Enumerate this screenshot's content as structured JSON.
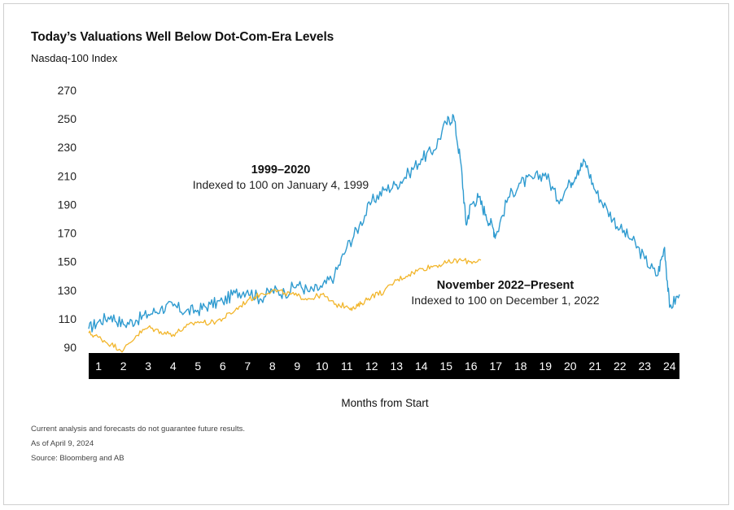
{
  "chart_data": {
    "type": "line",
    "title": "Today’s Valuations Well Below Dot-Com-Era Levels",
    "subtitle": "Nasdaq-100 Index",
    "xlabel": "Months from Start",
    "ylabel": "",
    "yticks": [
      90,
      110,
      130,
      150,
      170,
      190,
      210,
      230,
      250,
      270
    ],
    "ylim": [
      90,
      270
    ],
    "xlim": [
      0.6,
      24.4
    ],
    "months": [
      "1",
      "2",
      "3",
      "4",
      "5",
      "6",
      "7",
      "8",
      "9",
      "10",
      "11",
      "12",
      "13",
      "14",
      "15",
      "16",
      "17",
      "18",
      "19",
      "20",
      "21",
      "22",
      "23",
      "24"
    ],
    "series": [
      {
        "name": "1999–2020",
        "color": "#2f9bd0",
        "x": [
          0.6,
          1,
          1.5,
          2,
          2.5,
          3,
          3.5,
          4,
          4.5,
          5,
          5.5,
          6,
          6.5,
          7,
          7.5,
          8,
          8.5,
          9,
          9.5,
          10,
          10.5,
          11,
          11.5,
          12,
          12.5,
          13,
          13.5,
          14,
          14.5,
          15,
          15.3,
          15.6,
          15.8,
          16,
          16.3,
          16.6,
          16.9,
          17,
          17.5,
          18,
          18.5,
          19,
          19.5,
          20,
          20.3,
          20.6,
          21,
          21.5,
          22,
          22.5,
          23,
          23.5,
          23.8,
          24,
          24.4
        ],
        "y": [
          103,
          108,
          112,
          106,
          109,
          113,
          117,
          119,
          115,
          116,
          120,
          122,
          128,
          130,
          124,
          130,
          128,
          134,
          129,
          132,
          140,
          160,
          175,
          192,
          200,
          204,
          212,
          222,
          228,
          247,
          252,
          218,
          176,
          190,
          195,
          183,
          173,
          168,
          195,
          205,
          208,
          212,
          193,
          205,
          214,
          220,
          200,
          186,
          173,
          165,
          152,
          140,
          160,
          118,
          127
        ]
      },
      {
        "name": "November 2022–Present",
        "color": "#f2b62c",
        "x": [
          0.6,
          1,
          1.5,
          2,
          2.5,
          3,
          3.5,
          4,
          4.5,
          5,
          5.5,
          6,
          6.5,
          7,
          7.5,
          8,
          8.5,
          9,
          9.5,
          10,
          10.5,
          11,
          11.3,
          11.6,
          12,
          12.5,
          13,
          13.5,
          14,
          14.5,
          15,
          15.5,
          16,
          16.4
        ],
        "y": [
          100,
          97,
          92,
          88,
          98,
          104,
          101,
          99,
          104,
          108,
          107,
          110,
          116,
          123,
          127,
          130,
          128,
          126,
          124,
          127,
          120,
          119,
          117,
          121,
          126,
          129,
          137,
          141,
          145,
          147,
          149,
          151,
          150,
          151
        ]
      }
    ],
    "annotations": {
      "a1_title": "1999–2020",
      "a1_text": "Indexed to 100 on January 4, 1999",
      "a2_title": "November 2022–Present",
      "a2_text": "Indexed to 100 on December 1, 2022"
    },
    "grid": false,
    "legend": "none"
  },
  "footnotes": {
    "line1": "Current analysis and forecasts do not guarantee future results.",
    "line2": "As of April 9, 2024",
    "line3": "Source: Bloomberg and AB"
  }
}
